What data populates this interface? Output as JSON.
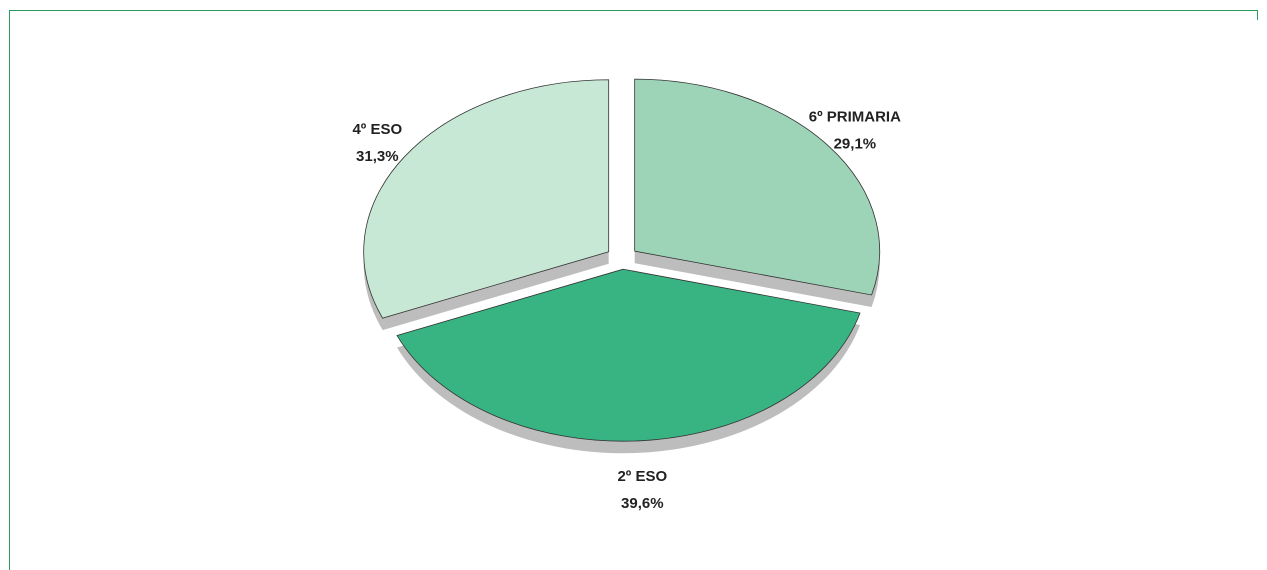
{
  "chart_data": {
    "type": "pie",
    "categories": [
      "6º PRIMARIA",
      "2º ESO",
      "4º ESO"
    ],
    "values": [
      29.1,
      39.6,
      31.3
    ],
    "value_labels": [
      "29,1%",
      "39,6%",
      "31,3%"
    ],
    "colors": [
      "#9dd3b7",
      "#38b483",
      "#c8e8d6"
    ]
  }
}
